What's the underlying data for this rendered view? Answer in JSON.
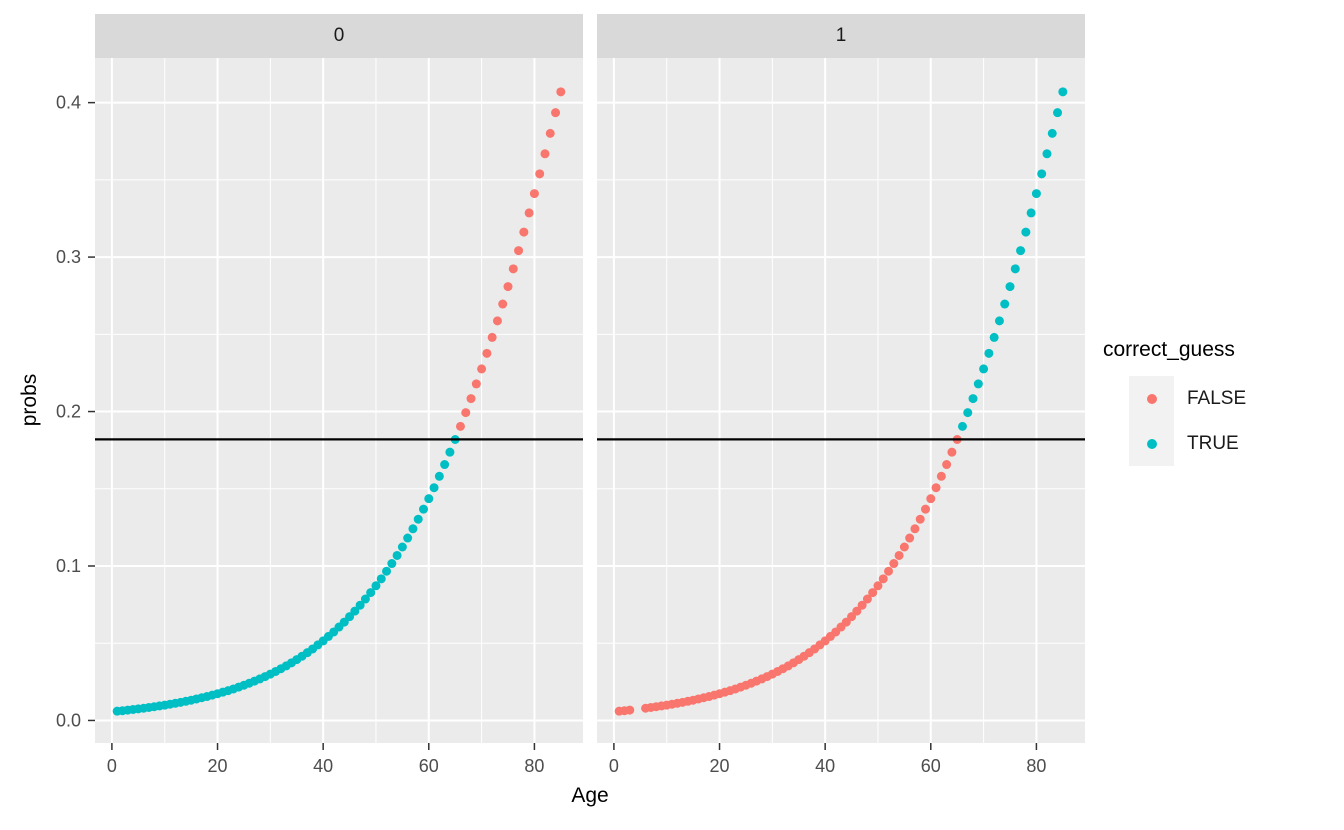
{
  "chart_data": {
    "type": "scatter",
    "title": "",
    "xlabel": "Age",
    "ylabel": "probs",
    "xlim": [
      -3.2,
      89.2
    ],
    "ylim": [
      -0.0146,
      0.4289
    ],
    "x_ticks": [
      0,
      20,
      40,
      60,
      80
    ],
    "y_ticks": [
      {
        "value": 0.0,
        "label": "0.0"
      },
      {
        "value": 0.1,
        "label": "0.1"
      },
      {
        "value": 0.2,
        "label": "0.2"
      },
      {
        "value": 0.3,
        "label": "0.3"
      },
      {
        "value": 0.4,
        "label": "0.4"
      }
    ],
    "x_minor": [
      10,
      30,
      50,
      70
    ],
    "y_minor": [
      0.05,
      0.15,
      0.25,
      0.35
    ],
    "grid": "on",
    "hline_y": 0.182,
    "legend": {
      "title": "correct_guess",
      "position": "right",
      "entries": [
        {
          "label": "FALSE",
          "color": "#F8766D"
        },
        {
          "label": "TRUE",
          "color": "#00BFC4"
        }
      ]
    },
    "probs_by_age": [
      0.006,
      0.0063,
      0.0067,
      0.0071,
      0.0075,
      0.0079,
      0.0084,
      0.0089,
      0.0094,
      0.0099,
      0.0105,
      0.0111,
      0.0117,
      0.0124,
      0.0131,
      0.0139,
      0.0147,
      0.0155,
      0.0164,
      0.0173,
      0.0183,
      0.0193,
      0.0204,
      0.0216,
      0.0228,
      0.0241,
      0.0255,
      0.0269,
      0.0284,
      0.03,
      0.0317,
      0.0335,
      0.0353,
      0.0373,
      0.0394,
      0.0416,
      0.0439,
      0.0463,
      0.0489,
      0.0515,
      0.0544,
      0.0573,
      0.0605,
      0.0637,
      0.0672,
      0.0708,
      0.0746,
      0.0786,
      0.0828,
      0.0872,
      0.0917,
      0.0966,
      0.1016,
      0.1068,
      0.1123,
      0.1181,
      0.1241,
      0.1303,
      0.1368,
      0.1436,
      0.1507,
      0.1581,
      0.1657,
      0.1737,
      0.1819,
      0.1904,
      0.1993,
      0.2084,
      0.2179,
      0.2276,
      0.2377,
      0.248,
      0.2587,
      0.2696,
      0.2809,
      0.2924,
      0.3042,
      0.3162,
      0.3286,
      0.3411,
      0.3539,
      0.3669,
      0.3801,
      0.3935,
      0.407
    ],
    "facets": [
      {
        "label": "0",
        "series": [
          {
            "correct_guess": "TRUE",
            "ages": [
              1,
              2,
              3,
              4,
              5,
              6,
              7,
              8,
              9,
              10,
              11,
              12,
              13,
              14,
              15,
              16,
              17,
              18,
              19,
              20,
              21,
              22,
              23,
              24,
              25,
              26,
              27,
              28,
              29,
              30,
              31,
              32,
              33,
              34,
              35,
              36,
              37,
              38,
              39,
              40,
              41,
              42,
              43,
              44,
              45,
              46,
              47,
              48,
              49,
              50,
              51,
              52,
              53,
              54,
              55,
              56,
              57,
              58,
              59,
              60,
              61,
              62,
              63,
              64,
              65
            ]
          },
          {
            "correct_guess": "FALSE",
            "ages": [
              66,
              67,
              68,
              69,
              70,
              71,
              72,
              73,
              74,
              75,
              76,
              77,
              78,
              79,
              80,
              81,
              82,
              83,
              84,
              85
            ]
          }
        ]
      },
      {
        "label": "1",
        "series": [
          {
            "correct_guess": "FALSE",
            "ages": [
              1,
              2,
              3,
              6,
              7,
              8,
              9,
              10,
              11,
              12,
              13,
              14,
              15,
              16,
              17,
              18,
              19,
              20,
              21,
              22,
              23,
              24,
              25,
              26,
              27,
              28,
              29,
              30,
              31,
              32,
              33,
              34,
              35,
              36,
              37,
              38,
              39,
              40,
              41,
              42,
              43,
              44,
              45,
              46,
              47,
              48,
              49,
              50,
              51,
              52,
              53,
              54,
              55,
              56,
              57,
              58,
              59,
              60,
              61,
              62,
              63,
              64,
              65
            ]
          },
          {
            "correct_guess": "TRUE",
            "ages": [
              66,
              67,
              68,
              69,
              70,
              71,
              72,
              73,
              74,
              75,
              76,
              77,
              78,
              79,
              80,
              81,
              82,
              83,
              84,
              85
            ]
          }
        ]
      }
    ],
    "theme": {
      "background": "#FFFFFF",
      "panel_bg": "#EBEBEB",
      "strip_bg": "#D9D9D9",
      "grid": "#FFFFFF",
      "tick": "#333333",
      "tick_label": "#4D4D4D",
      "text": "#000000",
      "legend_key_bg": "#F2F2F2",
      "hline": "#000000"
    }
  }
}
